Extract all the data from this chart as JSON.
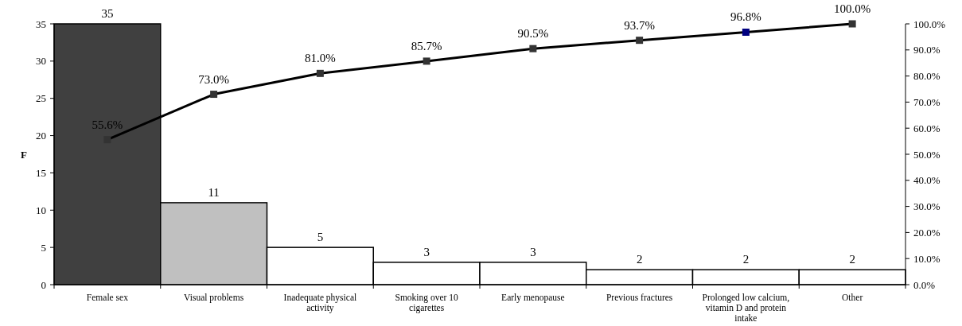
{
  "chart_data": {
    "type": "bar",
    "ylabel": "F",
    "categories": [
      "Female sex",
      "Visual problems",
      "Inadequate physical activity",
      "Smoking over 10 cigarettes",
      "Early menopause",
      "Previous fractures",
      "Prolonged low calcium, vitamin D and protein intake",
      "Other"
    ],
    "series": [
      {
        "values": [
          35,
          11,
          5,
          3,
          3,
          2,
          2,
          2
        ],
        "colors": [
          "#404040",
          "#c0c0c0",
          "#ffffff",
          "#ffffff",
          "#ffffff",
          "#ffffff",
          "#ffffff",
          "#ffffff"
        ]
      },
      {
        "type": "line",
        "axis": "y2",
        "values": [
          55.6,
          73.0,
          81.0,
          85.7,
          90.5,
          93.7,
          96.8,
          100.0
        ],
        "color": "#000000",
        "colors": [
          "#333333",
          "#333333",
          "#333333",
          "#333333",
          "#333333",
          "#333333",
          "#000080",
          "#333333"
        ],
        "marker": "square",
        "value_labels": [
          "55.6%",
          "73.0%",
          "81.0%",
          "85.7%",
          "90.5%",
          "93.7%",
          "96.8%",
          "100.0%"
        ]
      }
    ],
    "data_labels": true,
    "ylim": [
      0,
      35
    ],
    "yticks": [
      0,
      5,
      10,
      15,
      20,
      25,
      30,
      35
    ],
    "y2lim": [
      0,
      100
    ],
    "y2ticks": [
      {
        "value": 0,
        "label": "0.0%"
      },
      {
        "value": 10,
        "label": "10.0%"
      },
      {
        "value": 20,
        "label": "20.0%"
      },
      {
        "value": 30,
        "label": "30.0%"
      },
      {
        "value": 40,
        "label": "40.0%"
      },
      {
        "value": 50,
        "label": "50.0%"
      },
      {
        "value": 60,
        "label": "60.0%"
      },
      {
        "value": 70,
        "label": "70.0%"
      },
      {
        "value": 80,
        "label": "80.0%"
      },
      {
        "value": 90,
        "label": "90.0%"
      },
      {
        "value": 100,
        "label": "100.0%"
      }
    ],
    "grid": false
  }
}
